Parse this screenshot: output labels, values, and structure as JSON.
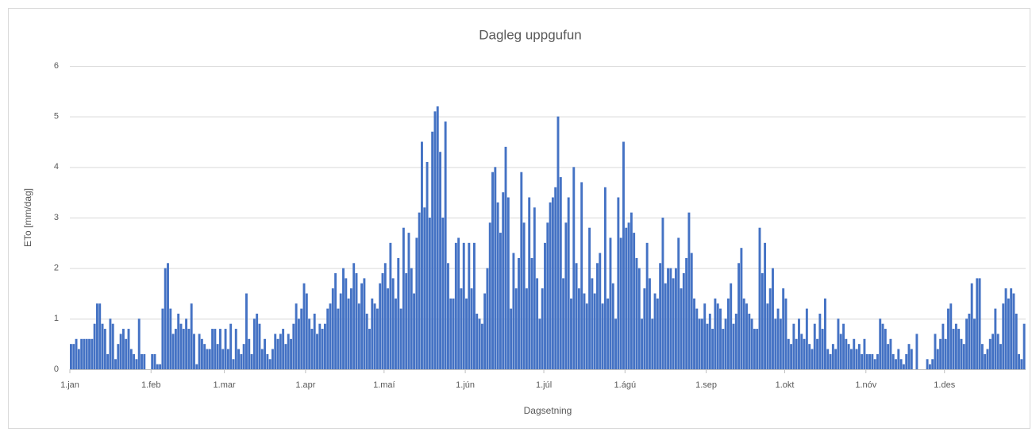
{
  "chart_data": {
    "type": "bar",
    "title": "Dagleg uppgufun",
    "xlabel": "Dagsetning",
    "ylabel": "ETo [mm/dag]",
    "color": "#4472c4",
    "ylim": [
      0,
      6
    ],
    "yticks": [
      0,
      1,
      2,
      3,
      4,
      5,
      6
    ],
    "grid": true,
    "categories": [
      "1.jan",
      null,
      null,
      null,
      null,
      null,
      null,
      null,
      null,
      null,
      null,
      null,
      null,
      null,
      null,
      null,
      null,
      null,
      null,
      null,
      null,
      null,
      null,
      null,
      null,
      null,
      null,
      null,
      null,
      null,
      null,
      "1.feb",
      null,
      null,
      null,
      null,
      null,
      null,
      null,
      null,
      null,
      null,
      null,
      null,
      null,
      null,
      null,
      null,
      null,
      null,
      null,
      null,
      null,
      null,
      null,
      null,
      null,
      null,
      null,
      "1.mar",
      null,
      null,
      null,
      null,
      null,
      null,
      null,
      null,
      null,
      null,
      null,
      null,
      null,
      null,
      null,
      null,
      null,
      null,
      null,
      null,
      null,
      null,
      null,
      null,
      null,
      null,
      null,
      null,
      null,
      null,
      "1.apr",
      null,
      null,
      null,
      null,
      null,
      null,
      null,
      null,
      null,
      null,
      null,
      null,
      null,
      null,
      null,
      null,
      null,
      null,
      null,
      null,
      null,
      null,
      null,
      null,
      null,
      null,
      null,
      null,
      null,
      "1.maí",
      null,
      null,
      null,
      null,
      null,
      null,
      null,
      null,
      null,
      null,
      null,
      null,
      null,
      null,
      null,
      null,
      null,
      null,
      null,
      null,
      null,
      null,
      null,
      null,
      null,
      null,
      null,
      null,
      null,
      null,
      "1.jún",
      null,
      null,
      null,
      null,
      null,
      null,
      null,
      null,
      null,
      null,
      null,
      null,
      null,
      null,
      null,
      null,
      null,
      null,
      null,
      null,
      null,
      null,
      null,
      null,
      null,
      null,
      null,
      null,
      null,
      "1.júl",
      null,
      null,
      null,
      null,
      null,
      null,
      null,
      null,
      null,
      null,
      null,
      null,
      null,
      null,
      null,
      null,
      null,
      null,
      null,
      null,
      null,
      null,
      null,
      null,
      null,
      null,
      null,
      null,
      null,
      null,
      "1.ágú",
      null,
      null,
      null,
      null,
      null,
      null,
      null,
      null,
      null,
      null,
      null,
      null,
      null,
      null,
      null,
      null,
      null,
      null,
      null,
      null,
      null,
      null,
      null,
      null,
      null,
      null,
      null,
      null,
      null,
      null,
      "1.sep",
      null,
      null,
      null,
      null,
      null,
      null,
      null,
      null,
      null,
      null,
      null,
      null,
      null,
      null,
      null,
      null,
      null,
      null,
      null,
      null,
      null,
      null,
      null,
      null,
      null,
      null,
      null,
      null,
      null,
      "1.okt",
      null,
      null,
      null,
      null,
      null,
      null,
      null,
      null,
      null,
      null,
      null,
      null,
      null,
      null,
      null,
      null,
      null,
      null,
      null,
      null,
      null,
      null,
      null,
      null,
      null,
      null,
      null,
      null,
      null,
      null,
      "1.nóv",
      null,
      null,
      null,
      null,
      null,
      null,
      null,
      null,
      null,
      null,
      null,
      null,
      null,
      null,
      null,
      null,
      null,
      null,
      null,
      null,
      null,
      null,
      null,
      null,
      null,
      null,
      null,
      null,
      null,
      "1.des",
      null,
      null,
      null,
      null,
      null,
      null,
      null,
      null,
      null,
      null,
      null,
      null,
      null,
      null,
      null,
      null,
      null,
      null,
      null,
      null,
      null,
      null,
      null,
      null,
      null,
      null,
      null,
      null,
      null,
      null
    ],
    "values": [
      0.5,
      0.5,
      0.6,
      0.4,
      0.6,
      0.6,
      0.6,
      0.6,
      0.6,
      0.9,
      1.3,
      1.3,
      0.9,
      0.8,
      0.3,
      1.0,
      0.9,
      0.2,
      0.5,
      0.7,
      0.8,
      0.6,
      0.8,
      0.4,
      0.3,
      0.2,
      1.0,
      0.3,
      0.3,
      0.0,
      0.0,
      0.3,
      0.3,
      0.1,
      0.1,
      1.2,
      2.0,
      2.1,
      1.2,
      0.7,
      0.8,
      1.1,
      0.9,
      0.8,
      1.0,
      0.8,
      1.3,
      0.7,
      0.1,
      0.7,
      0.6,
      0.5,
      0.4,
      0.4,
      0.8,
      0.8,
      0.5,
      0.8,
      0.4,
      0.8,
      0.4,
      0.9,
      0.2,
      0.8,
      0.4,
      0.3,
      0.5,
      1.5,
      0.6,
      0.3,
      1.0,
      1.1,
      0.9,
      0.4,
      0.6,
      0.3,
      0.2,
      0.4,
      0.7,
      0.6,
      0.7,
      0.8,
      0.5,
      0.7,
      0.6,
      0.9,
      1.3,
      1.0,
      1.2,
      1.7,
      1.5,
      1.0,
      0.8,
      1.1,
      0.7,
      0.9,
      0.8,
      0.9,
      1.2,
      1.3,
      1.6,
      1.9,
      1.2,
      1.5,
      2.0,
      1.8,
      1.4,
      1.6,
      2.1,
      1.9,
      1.3,
      1.7,
      1.8,
      1.1,
      0.8,
      1.4,
      1.3,
      1.2,
      1.7,
      1.9,
      2.1,
      1.6,
      2.5,
      1.8,
      1.4,
      2.2,
      1.2,
      2.8,
      1.9,
      2.7,
      2.0,
      1.5,
      2.6,
      3.1,
      4.5,
      3.2,
      4.1,
      3.0,
      4.7,
      5.1,
      5.2,
      4.3,
      3.0,
      4.9,
      2.1,
      1.4,
      1.4,
      2.5,
      2.6,
      1.6,
      2.5,
      1.4,
      2.5,
      1.6,
      2.5,
      1.1,
      1.0,
      0.9,
      1.5,
      2.0,
      2.9,
      3.9,
      4.0,
      3.3,
      2.7,
      3.5,
      4.4,
      3.4,
      1.2,
      2.3,
      1.6,
      2.2,
      3.9,
      2.9,
      1.6,
      3.4,
      2.2,
      3.2,
      1.8,
      1.0,
      1.6,
      2.5,
      2.9,
      3.3,
      3.4,
      3.6,
      5.0,
      3.8,
      1.8,
      2.9,
      3.4,
      1.4,
      4.0,
      2.1,
      1.6,
      3.7,
      1.5,
      1.3,
      2.8,
      1.8,
      1.5,
      2.1,
      2.3,
      1.3,
      3.6,
      1.4,
      2.6,
      1.7,
      1.0,
      3.4,
      2.6,
      4.5,
      2.8,
      2.9,
      3.1,
      2.7,
      2.2,
      2.0,
      1.0,
      1.6,
      2.5,
      1.8,
      1.0,
      1.5,
      1.4,
      2.1,
      3.0,
      1.7,
      2.0,
      2.0,
      1.8,
      2.0,
      2.6,
      1.6,
      1.9,
      2.2,
      3.1,
      2.3,
      1.4,
      1.2,
      1.0,
      1.0,
      1.3,
      0.9,
      1.1,
      0.8,
      1.4,
      1.3,
      1.2,
      0.8,
      1.0,
      1.4,
      1.7,
      0.9,
      1.1,
      2.1,
      2.4,
      1.4,
      1.3,
      1.1,
      1.0,
      0.8,
      0.8,
      2.8,
      1.9,
      2.5,
      1.3,
      1.6,
      2.0,
      1.0,
      1.2,
      1.0,
      1.6,
      1.4,
      0.6,
      0.5,
      0.9,
      0.6,
      1.0,
      0.7,
      0.6,
      1.2,
      0.5,
      0.4,
      0.9,
      0.6,
      1.1,
      0.8,
      1.4,
      0.4,
      0.3,
      0.5,
      0.4,
      1.0,
      0.7,
      0.9,
      0.6,
      0.5,
      0.4,
      0.6,
      0.4,
      0.5,
      0.3,
      0.6,
      0.3,
      0.3,
      0.3,
      0.2,
      0.3,
      1.0,
      0.9,
      0.8,
      0.5,
      0.6,
      0.3,
      0.2,
      0.4,
      0.2,
      0.1,
      0.3,
      0.5,
      0.4,
      0.0,
      0.7,
      0.0,
      0.0,
      0.0,
      0.2,
      0.1,
      0.2,
      0.7,
      0.4,
      0.6,
      0.9,
      0.6,
      1.2,
      1.3,
      0.8,
      0.9,
      0.8,
      0.6,
      0.5,
      1.0,
      1.1,
      1.7,
      1.0,
      1.8,
      1.8,
      0.5,
      0.3,
      0.4,
      0.6,
      0.7,
      1.2,
      0.7,
      0.5,
      1.3,
      1.6,
      1.4,
      1.6,
      1.5,
      1.1,
      0.3,
      0.2,
      0.9
    ]
  }
}
